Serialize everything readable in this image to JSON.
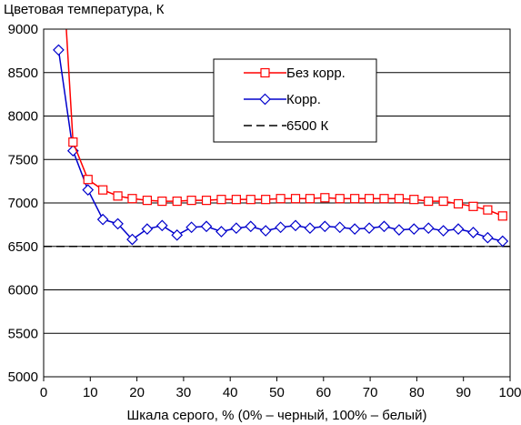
{
  "chart_data": {
    "type": "line",
    "title": "",
    "ylabel": "Цветовая температура, К",
    "xlabel": "Шкала серого, % (0% – черный, 100% – белый)",
    "xlim": [
      0,
      100
    ],
    "ylim": [
      5000,
      9000
    ],
    "x_ticks": [
      "0",
      "10",
      "20",
      "30",
      "40",
      "50",
      "60",
      "70",
      "80",
      "90",
      "100"
    ],
    "y_ticks": [
      "5000",
      "5500",
      "6000",
      "6500",
      "7000",
      "7500",
      "8000",
      "8500",
      "9000"
    ],
    "grid": "horizontal",
    "legend_position": "top-right",
    "series": [
      {
        "name": "Без корр.",
        "color": "#ff0000",
        "marker": "square",
        "x": [
          3.2,
          6.3,
          9.5,
          12.7,
          15.9,
          19.0,
          22.2,
          25.4,
          28.6,
          31.7,
          34.9,
          38.1,
          41.3,
          44.4,
          47.6,
          50.8,
          54.0,
          57.1,
          60.3,
          63.5,
          66.7,
          69.8,
          73.0,
          76.2,
          79.4,
          82.5,
          85.7,
          88.9,
          92.1,
          95.2,
          98.4
        ],
        "y": [
          10500,
          7700,
          7270,
          7150,
          7080,
          7050,
          7030,
          7020,
          7020,
          7030,
          7030,
          7040,
          7040,
          7040,
          7040,
          7050,
          7050,
          7050,
          7060,
          7050,
          7050,
          7050,
          7050,
          7050,
          7040,
          7020,
          7020,
          6990,
          6960,
          6920,
          6850
        ]
      },
      {
        "name": "Корр.",
        "color": "#0000cc",
        "marker": "diamond",
        "x": [
          3.2,
          6.3,
          9.5,
          12.7,
          15.9,
          19.0,
          22.2,
          25.4,
          28.6,
          31.7,
          34.9,
          38.1,
          41.3,
          44.4,
          47.6,
          50.8,
          54.0,
          57.1,
          60.3,
          63.5,
          66.7,
          69.8,
          73.0,
          76.2,
          79.4,
          82.5,
          85.7,
          88.9,
          92.1,
          95.2,
          98.4
        ],
        "y": [
          8760,
          7600,
          7150,
          6810,
          6760,
          6580,
          6700,
          6740,
          6630,
          6720,
          6730,
          6670,
          6710,
          6730,
          6680,
          6720,
          6740,
          6710,
          6730,
          6720,
          6700,
          6710,
          6730,
          6690,
          6700,
          6710,
          6680,
          6700,
          6660,
          6600,
          6560
        ]
      },
      {
        "name": "6500 К",
        "color": "#000000",
        "dash": true,
        "x": [
          0,
          100
        ],
        "y": [
          6500,
          6500
        ]
      }
    ]
  }
}
